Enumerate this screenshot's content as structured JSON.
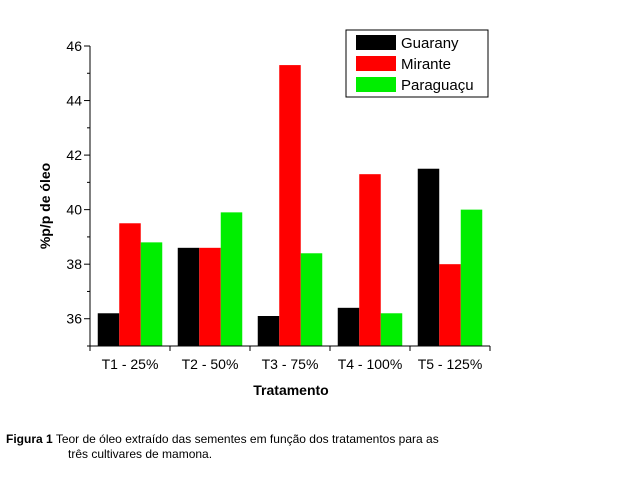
{
  "chart_data": {
    "type": "bar",
    "xlabel": "Tratamento",
    "ylabel": "%p/p de óleo",
    "ylim": [
      35,
      46
    ],
    "yticks": [
      36,
      38,
      40,
      42,
      44,
      46
    ],
    "categories": [
      "T1 - 25%",
      "T2 - 50%",
      "T3 - 75%",
      "T4 - 100%",
      "T5 - 125%"
    ],
    "series": [
      {
        "name": "Guarany",
        "color": "#000000",
        "values": [
          36.2,
          38.6,
          36.1,
          36.4,
          41.5
        ]
      },
      {
        "name": "Mirante",
        "color": "#ff0000",
        "values": [
          39.5,
          38.6,
          45.3,
          41.3,
          38.0
        ]
      },
      {
        "name": "Paraguaçu",
        "color": "#00ee00",
        "values": [
          38.8,
          39.9,
          38.4,
          36.2,
          40.0
        ]
      }
    ],
    "legend_position": "top-right",
    "grid": false
  },
  "caption": {
    "label": "Figura 1",
    "line1": "Teor de óleo extraído das sementes em função dos tratamentos para as",
    "line2": "três cultivares de mamona."
  }
}
